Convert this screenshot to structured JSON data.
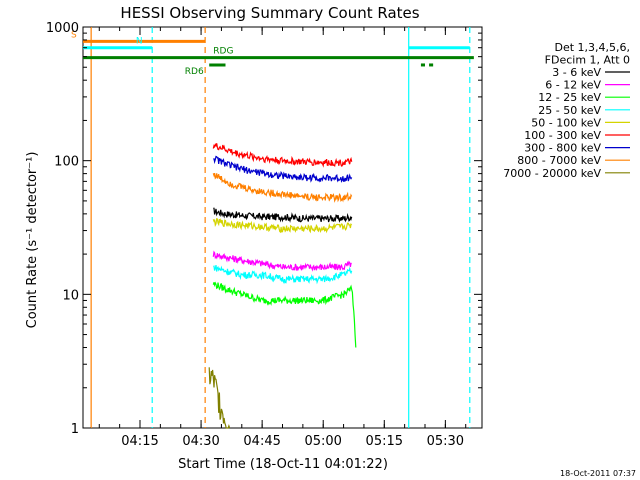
{
  "colors": {
    "background": "#ffffff",
    "axes": "#000000",
    "bands": {
      "3 - 6 keV": "#000000",
      "6 - 12 keV": "#ff00ff",
      "12 - 25 keV": "#00ff00",
      "25 - 50 keV": "#00ffff",
      "50 - 100 keV": "#d4d400",
      "100 - 300 keV": "#ff0000",
      "300 - 800 keV": "#0000cc",
      "800 - 7000 keV": "#ff8000",
      "7000 - 20000 keV": "#808000"
    },
    "flags": {
      "S": "#ff8000",
      "N": "#00ffff",
      "RD6": "#008000",
      "RDG": "#008000"
    }
  },
  "chart_data": {
    "type": "line",
    "title": "HESSI Observing Summary Count Rates",
    "xlabel": "Start Time (18-Oct-11 04:01:22)",
    "ylabel": "Count Rate (s⁻¹ detector⁻¹)",
    "x_unit": "time (HH:MM, 18-Oct-2011 UT)",
    "xlim": [
      "04:01",
      "05:39"
    ],
    "ylim": [
      1,
      1000
    ],
    "yscale": "log",
    "x_ticks": [
      "04:15",
      "04:30",
      "04:45",
      "05:00",
      "05:15",
      "05:30"
    ],
    "y_ticks": [
      {
        "label": "1",
        "value": 1
      },
      {
        "label": "10",
        "value": 10
      },
      {
        "label": "100",
        "value": 100
      },
      {
        "label": "1000",
        "value": 1000
      }
    ],
    "legend": {
      "placement": "right",
      "header": [
        "Det 1,3,4,5,6,",
        "FDecim 1, Att 0"
      ]
    },
    "series": [
      {
        "name": "3 - 6 keV",
        "x": [
          "04:33",
          "04:36",
          "04:40",
          "04:45",
          "04:50",
          "04:55",
          "05:00",
          "05:05",
          "05:07"
        ],
        "y": [
          42,
          40,
          39,
          38,
          38,
          37,
          37,
          37,
          38
        ]
      },
      {
        "name": "6 - 12 keV",
        "x": [
          "04:33",
          "04:36",
          "04:40",
          "04:45",
          "04:50",
          "04:55",
          "05:00",
          "05:05",
          "05:07"
        ],
        "y": [
          20,
          19,
          18,
          17,
          16,
          16,
          16,
          16,
          17
        ]
      },
      {
        "name": "12 - 25 keV",
        "x": [
          "04:33",
          "04:36",
          "04:40",
          "04:45",
          "04:50",
          "04:55",
          "05:00",
          "05:05",
          "05:07",
          "05:08"
        ],
        "y": [
          12,
          11,
          10,
          9,
          9,
          9,
          9,
          10,
          11,
          4
        ]
      },
      {
        "name": "25 - 50 keV",
        "x": [
          "04:33",
          "04:36",
          "04:40",
          "04:45",
          "04:50",
          "04:55",
          "05:00",
          "05:05",
          "05:07"
        ],
        "y": [
          16,
          15,
          14,
          14,
          13,
          13,
          13,
          14,
          15
        ]
      },
      {
        "name": "50 - 100 keV",
        "x": [
          "04:33",
          "04:36",
          "04:40",
          "04:45",
          "04:50",
          "04:55",
          "05:00",
          "05:05",
          "05:07"
        ],
        "y": [
          35,
          34,
          33,
          32,
          31,
          31,
          31,
          32,
          33
        ]
      },
      {
        "name": "100 - 300 keV",
        "x": [
          "04:33",
          "04:35",
          "04:38",
          "04:42",
          "04:46",
          "04:50",
          "04:55",
          "05:00",
          "05:05",
          "05:07"
        ],
        "y": [
          130,
          125,
          115,
          108,
          103,
          100,
          98,
          97,
          97,
          98
        ]
      },
      {
        "name": "300 - 800 keV",
        "x": [
          "04:33",
          "04:35",
          "04:38",
          "04:42",
          "04:46",
          "04:50",
          "04:55",
          "05:00",
          "05:05",
          "05:07"
        ],
        "y": [
          105,
          98,
          90,
          84,
          80,
          77,
          75,
          74,
          74,
          75
        ]
      },
      {
        "name": "800 - 7000 keV",
        "x": [
          "04:33",
          "04:35",
          "04:38",
          "04:42",
          "04:46",
          "04:50",
          "04:55",
          "05:00",
          "05:05",
          "05:07"
        ],
        "y": [
          80,
          73,
          66,
          61,
          58,
          56,
          54,
          53,
          53,
          54
        ]
      },
      {
        "name": "7000 - 20000 keV",
        "x": [
          "04:32",
          "04:33",
          "04:34",
          "04:35",
          "04:36",
          "04:37"
        ],
        "y": [
          2.5,
          2.3,
          1.8,
          1.4,
          1.2,
          1.0
        ]
      }
    ],
    "flags": [
      {
        "label": "S",
        "y": 780,
        "segments": [
          [
            "04:01",
            "04:31"
          ]
        ]
      },
      {
        "label": "N",
        "y": 700,
        "segments": [
          [
            "04:01",
            "04:18"
          ],
          [
            "05:21",
            "05:36"
          ]
        ]
      },
      {
        "label": "RDG",
        "y": 590,
        "segments": [
          [
            "04:01",
            "05:37"
          ]
        ]
      },
      {
        "label": "RD6",
        "y": 520,
        "segments": [
          [
            "04:32",
            "04:36"
          ],
          [
            "05:24",
            "05:25"
          ],
          [
            "05:26",
            "05:27"
          ]
        ]
      }
    ],
    "vertical_lines": [
      {
        "x": "04:03",
        "style": "solid",
        "color": "#ff8000"
      },
      {
        "x": "04:18",
        "style": "dashed",
        "color": "#00ffff"
      },
      {
        "x": "04:31",
        "style": "dashed",
        "color": "#ff8000"
      },
      {
        "x": "05:21",
        "style": "solid",
        "color": "#00ffff"
      },
      {
        "x": "05:36",
        "style": "dashed",
        "color": "#00ffff"
      }
    ]
  },
  "footer": {
    "timestamp": "18-Oct-2011 07:37"
  }
}
